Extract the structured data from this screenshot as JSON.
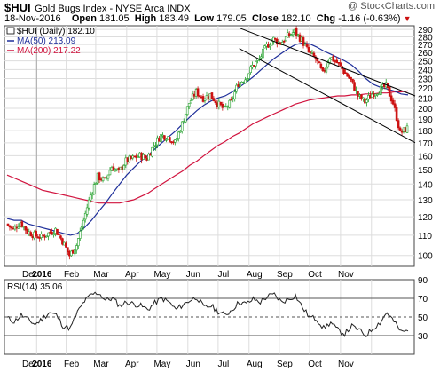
{
  "header": {
    "symbol": "$HUI",
    "name": "Gold Bugs Index - NYSE Arca INDX",
    "watermark": "@ StockCharts.com",
    "date": "18-Nov-2016",
    "open_label": "Open",
    "open": "181.05",
    "high_label": "High",
    "high": "183.49",
    "low_label": "Low",
    "low": "179.05",
    "close_label": "Close",
    "close": "182.10",
    "chg_label": "Chg",
    "chg": "-1.16 (-0.63%)"
  },
  "legend": {
    "price": "$HUI (Daily) 182.10",
    "ma50": "MA(50) 213.09",
    "ma200": "MA(200) 217.22",
    "rsi": "RSI(14) 35.06"
  },
  "colors": {
    "up": "#22a02a",
    "down": "#cc1111",
    "ma50": "#1f2f9a",
    "ma200": "#d1133e",
    "rsi": "#222222",
    "grid": "#dddddd",
    "channel": "#000000"
  },
  "chart_data": [
    {
      "type": "candlestick",
      "title": "$HUI (Daily) 182.10",
      "y_scale": "log",
      "ylim": [
        95,
        295
      ],
      "y_ticks": [
        100,
        110,
        120,
        130,
        140,
        150,
        160,
        170,
        180,
        190,
        200,
        210,
        220,
        230,
        240,
        250,
        260,
        270,
        280,
        290
      ],
      "x_ticks": [
        "Dec",
        "2016",
        "Feb",
        "Mar",
        "Apr",
        "May",
        "Jun",
        "Jul",
        "Aug",
        "Sep",
        "Oct",
        "Nov"
      ],
      "grid": true,
      "weekly_close": [
        116,
        113,
        117,
        112,
        110,
        109,
        111,
        113,
        107,
        100,
        105,
        118,
        133,
        145,
        142,
        152,
        148,
        156,
        158,
        160,
        158,
        168,
        176,
        175,
        170,
        186,
        205,
        216,
        210,
        213,
        205,
        199,
        206,
        225,
        230,
        244,
        252,
        268,
        277,
        272,
        281,
        287,
        276,
        260,
        252,
        235,
        255,
        248,
        238,
        228,
        212,
        206,
        214,
        218,
        222,
        205,
        178,
        182
      ],
      "series": [
        {
          "name": "MA(50) 213.09",
          "values": [
            119,
            118,
            118,
            116,
            115,
            114,
            113,
            112,
            111,
            110,
            111,
            114,
            118,
            123,
            128,
            134,
            140,
            146,
            151,
            156,
            160,
            165,
            170,
            175,
            180,
            186,
            192,
            198,
            203,
            207,
            210,
            212,
            216,
            221,
            226,
            232,
            239,
            246,
            253,
            259,
            265,
            270,
            272,
            271,
            267,
            262,
            258,
            254,
            250,
            245,
            238,
            230,
            224,
            221,
            219,
            217,
            214,
            213
          ]
        },
        {
          "name": "MA(200) 217.22",
          "values": [
            146,
            144,
            142,
            140,
            138,
            136,
            135,
            134,
            133,
            132,
            131,
            130,
            129,
            128,
            128,
            128,
            128,
            129,
            130,
            132,
            134,
            137,
            140,
            143,
            146,
            149,
            153,
            156,
            160,
            164,
            168,
            171,
            175,
            178,
            182,
            186,
            189,
            192,
            195,
            198,
            201,
            204,
            206,
            208,
            209,
            210,
            211,
            212,
            212,
            213,
            213,
            214,
            214,
            215,
            215,
            216,
            216,
            217
          ]
        }
      ],
      "channel": {
        "upper": [
          [
            33,
            292
          ],
          [
            57,
            212
          ]
        ],
        "lower": [
          [
            33,
            265
          ],
          [
            57,
            170
          ]
        ]
      }
    },
    {
      "type": "line",
      "title": "RSI(14) 35.06",
      "ylim": [
        10,
        90
      ],
      "y_ticks": [
        30,
        50,
        70,
        90
      ],
      "reference_lines": [
        30,
        50,
        70
      ],
      "x_ticks": [
        "Dec",
        "2016",
        "Feb",
        "Mar",
        "Apr",
        "May",
        "Jun",
        "Jul",
        "Aug",
        "Sep",
        "Oct",
        "Nov"
      ],
      "series": [
        {
          "name": "RSI(14) 35.06",
          "values": [
            49,
            45,
            52,
            47,
            42,
            48,
            55,
            52,
            40,
            38,
            55,
            67,
            74,
            76,
            68,
            70,
            62,
            66,
            64,
            62,
            58,
            65,
            70,
            66,
            58,
            63,
            68,
            71,
            60,
            62,
            56,
            52,
            58,
            66,
            64,
            69,
            66,
            72,
            74,
            66,
            69,
            73,
            60,
            50,
            48,
            38,
            44,
            36,
            32,
            40,
            36,
            30,
            38,
            44,
            55,
            45,
            34,
            35
          ]
        }
      ]
    }
  ]
}
